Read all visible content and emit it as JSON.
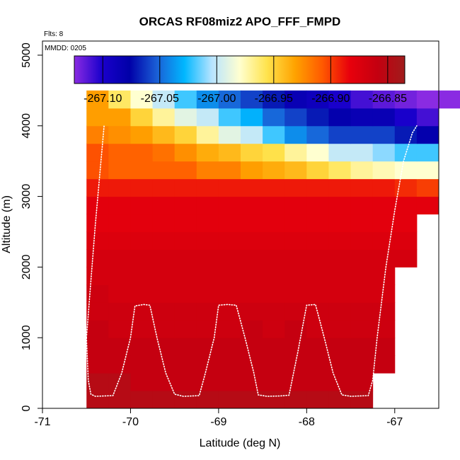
{
  "chart_data": {
    "type": "heatmap",
    "title": "ORCAS RF08miz2 APO_FFF_FMPD",
    "xlabel": "Latitude (deg N)",
    "ylabel": "Altitude (m)",
    "annotations": {
      "flights": "Flts: 8",
      "mmdd": "MMDD: 0205"
    },
    "xlim": [
      -71,
      -66.5
    ],
    "ylim": [
      0,
      5200
    ],
    "x_ticks": [
      -71,
      -70,
      -69,
      -68,
      -67
    ],
    "x_tick_labels": [
      "-71",
      "-70",
      "-69",
      "-68",
      "-67"
    ],
    "y_ticks": [
      0,
      1000,
      2000,
      3000,
      4000,
      5000
    ],
    "y_tick_labels": [
      "0",
      "1000",
      "2000",
      "3000",
      "4000",
      "5000"
    ],
    "colorbar": {
      "min": -267.125,
      "max": -266.835,
      "ticks": [
        -267.1,
        -267.05,
        -267.0,
        -266.95,
        -266.9,
        -266.85
      ],
      "tick_labels": [
        "-267.10",
        "-267.05",
        "-267.00",
        "-266.95",
        "-266.90",
        "-266.85"
      ],
      "colors": [
        "#8a2be2",
        "#1a00cc",
        "#0000a8",
        "#1a5fd6",
        "#00b7ff",
        "#b8e4ff",
        "#ffffd0",
        "#ffe34d",
        "#ffa300",
        "#ff5a00",
        "#e8000c",
        "#c40010",
        "#a01c1c"
      ]
    },
    "grid": {
      "lat_start": -70.5,
      "lat_step": 0.25,
      "alt_start": 0,
      "alt_step": 250,
      "values": [
        [
          -266.85,
          -266.85,
          -266.85,
          -266.85,
          -266.85,
          -266.85,
          -266.85,
          -266.85,
          -266.85,
          -266.85,
          -266.85,
          -266.85,
          -266.85
        ],
        [
          -266.85,
          -266.85,
          -266.86,
          -266.86,
          -266.86,
          -266.86,
          -266.86,
          -266.86,
          -266.86,
          -266.86,
          -266.86,
          -266.86,
          -266.86
        ],
        [
          -266.86,
          -266.86,
          -266.86,
          -266.86,
          -266.86,
          -266.86,
          -266.86,
          -266.86,
          -266.86,
          -266.86,
          -266.86,
          -266.86,
          -266.86,
          -266.86
        ],
        [
          -266.86,
          -266.86,
          -266.86,
          -266.86,
          -266.86,
          -266.86,
          -266.86,
          -266.86,
          -266.86,
          -266.86,
          -266.86,
          -266.86,
          -266.86,
          -266.86
        ],
        [
          -266.86,
          -266.865,
          -266.865,
          -266.865,
          -266.865,
          -266.865,
          -266.865,
          -266.86,
          -266.865,
          -266.86,
          -266.865,
          -266.865,
          -266.865,
          -266.865
        ],
        [
          -266.865,
          -266.865,
          -266.865,
          -266.865,
          -266.865,
          -266.865,
          -266.865,
          -266.865,
          -266.865,
          -266.865,
          -266.865,
          -266.865,
          -266.865,
          -266.865
        ],
        [
          -266.865,
          -266.87,
          -266.87,
          -266.87,
          -266.87,
          -266.87,
          -266.87,
          -266.87,
          -266.87,
          -266.87,
          -266.87,
          -266.87,
          -266.87,
          -266.87
        ],
        [
          -266.87,
          -266.87,
          -266.87,
          -266.87,
          -266.87,
          -266.87,
          -266.87,
          -266.87,
          -266.87,
          -266.87,
          -266.87,
          -266.87,
          -266.87,
          -266.87
        ],
        [
          -266.87,
          -266.87,
          -266.87,
          -266.87,
          -266.87,
          -266.87,
          -266.87,
          -266.87,
          -266.87,
          -266.87,
          -266.87,
          -266.87,
          -266.87,
          -266.87,
          -266.87
        ],
        [
          -266.875,
          -266.875,
          -266.875,
          -266.875,
          -266.875,
          -266.875,
          -266.875,
          -266.875,
          -266.875,
          -266.875,
          -266.875,
          -266.875,
          -266.875,
          -266.875,
          -266.875
        ],
        [
          -266.88,
          -266.88,
          -266.88,
          -266.88,
          -266.88,
          -266.88,
          -266.88,
          -266.88,
          -266.88,
          -266.88,
          -266.88,
          -266.88,
          -266.88,
          -266.88,
          -266.88
        ],
        [
          -266.88,
          -266.88,
          -266.88,
          -266.88,
          -266.88,
          -266.88,
          -266.88,
          -266.88,
          -266.88,
          -266.88,
          -266.88,
          -266.88,
          -266.88,
          -266.88,
          -266.88,
          -266.88
        ],
        [
          -266.89,
          -266.89,
          -266.89,
          -266.89,
          -266.89,
          -266.89,
          -266.89,
          -266.89,
          -266.89,
          -266.89,
          -266.89,
          -266.89,
          -266.89,
          -266.89,
          -266.895,
          -266.9
        ],
        [
          -266.905,
          -266.91,
          -266.91,
          -266.91,
          -266.91,
          -266.92,
          -266.92,
          -266.93,
          -266.935,
          -266.94,
          -266.95,
          -266.96,
          -266.97,
          -266.975,
          -266.98,
          -266.98
        ],
        [
          -266.905,
          -266.91,
          -266.91,
          -266.915,
          -266.925,
          -266.935,
          -266.94,
          -266.95,
          -266.955,
          -266.97,
          -266.98,
          -267.0,
          -267.0,
          -267.01,
          -267.02,
          -267.02
        ],
        [
          -266.92,
          -266.925,
          -266.93,
          -266.94,
          -266.95,
          -266.97,
          -266.99,
          -267.0,
          -267.02,
          -267.04,
          -267.05,
          -267.06,
          -267.06,
          -267.06,
          -267.07,
          -267.08
        ],
        [
          -266.93,
          -266.93,
          -266.95,
          -266.97,
          -266.99,
          -267.0,
          -267.02,
          -267.03,
          -267.05,
          -267.06,
          -267.07,
          -267.08,
          -267.085,
          -267.085,
          -267.1,
          -267.11
        ],
        [
          -266.93,
          -266.96,
          -266.98,
          -267.0,
          -267.02,
          -267.04,
          -267.05,
          -267.06,
          -267.07,
          -267.085,
          -267.09,
          -267.1,
          -267.11,
          -267.115,
          -267.12,
          -267.125,
          -267.125
        ]
      ]
    },
    "flight_track": [
      [
        -70.5,
        1000
      ],
      [
        -70.48,
        400
      ],
      [
        -70.45,
        200
      ],
      [
        -70.4,
        170
      ],
      [
        -70.3,
        175
      ],
      [
        -70.2,
        180
      ],
      [
        -70.1,
        500
      ],
      [
        -70.0,
        1000
      ],
      [
        -69.95,
        1450
      ],
      [
        -69.85,
        1470
      ],
      [
        -69.78,
        1460
      ],
      [
        -69.7,
        1000
      ],
      [
        -69.6,
        500
      ],
      [
        -69.5,
        200
      ],
      [
        -69.4,
        170
      ],
      [
        -69.3,
        175
      ],
      [
        -69.22,
        180
      ],
      [
        -69.15,
        500
      ],
      [
        -69.05,
        1000
      ],
      [
        -69.0,
        1460
      ],
      [
        -68.9,
        1470
      ],
      [
        -68.8,
        1460
      ],
      [
        -68.7,
        1000
      ],
      [
        -68.6,
        500
      ],
      [
        -68.55,
        190
      ],
      [
        -68.45,
        170
      ],
      [
        -68.3,
        175
      ],
      [
        -68.2,
        185
      ],
      [
        -68.1,
        800
      ],
      [
        -68.0,
        1460
      ],
      [
        -67.9,
        1470
      ],
      [
        -67.8,
        1000
      ],
      [
        -67.7,
        500
      ],
      [
        -67.6,
        190
      ],
      [
        -67.5,
        170
      ],
      [
        -67.3,
        180
      ],
      [
        -67.25,
        400
      ],
      [
        -67.2,
        1000
      ],
      [
        -67.1,
        2000
      ],
      [
        -67.0,
        2800
      ],
      [
        -66.9,
        3500
      ],
      [
        -66.8,
        3900
      ],
      [
        -66.75,
        4000
      ]
    ],
    "flight_track_upper": [
      [
        -70.5,
        1000
      ],
      [
        -70.45,
        1800
      ],
      [
        -70.4,
        2600
      ],
      [
        -70.35,
        3300
      ],
      [
        -70.3,
        4000
      ]
    ]
  }
}
